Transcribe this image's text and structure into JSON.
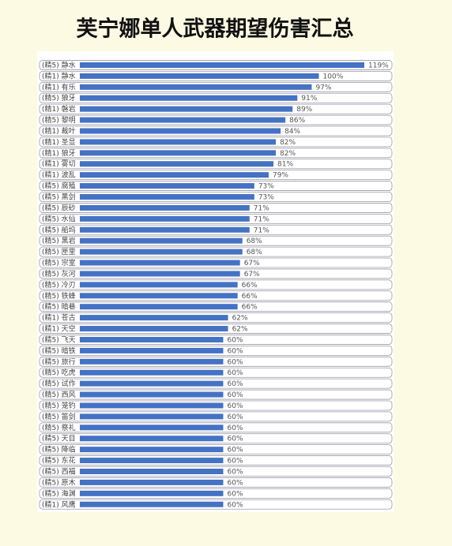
{
  "chart_data": {
    "type": "barh",
    "title": "芙宁娜单人武器期望伤害汇总",
    "color": "#4472c4",
    "categories": [
      "(精5) 静水",
      "(精1) 静水",
      "(精1) 有乐",
      "(精5) 狼牙",
      "(精1) 磐岩",
      "(精5) 黎明",
      "(精1) 裁叶",
      "(精1) 圣显",
      "(精1) 狼牙",
      "(精1) 雾切",
      "(精1) 波乱",
      "(精5) 腐殖",
      "(精5) 黑剑",
      "(精5) 辰砂",
      "(精5) 水仙",
      "(精5) 船坞",
      "(精5) 黑岩",
      "(精5) 匣里",
      "(精5) 宗室",
      "(精5) 灰河",
      "(精5) 冷刃",
      "(精5) 铁蜂",
      "(精5) 暗巷",
      "(精1) 苍古",
      "(精1) 天空",
      "(精5) 飞天",
      "(精5) 暗铁",
      "(精5) 旅行",
      "(精5) 吃虎",
      "(精5) 试作",
      "(精5) 西风",
      "(精5) 笼钓",
      "(精5) 笛剑",
      "(精5) 祭礼",
      "(精5) 天目",
      "(精5) 降临",
      "(精5) 东花",
      "(精5) 西福",
      "(精5) 原木",
      "(精5) 海渊",
      "(精1) 风鹰"
    ],
    "values": [
      119,
      100,
      97,
      91,
      89,
      86,
      84,
      82,
      82,
      81,
      79,
      73,
      73,
      71,
      71,
      71,
      68,
      68,
      67,
      67,
      66,
      66,
      66,
      62,
      62,
      60,
      60,
      60,
      60,
      60,
      60,
      60,
      60,
      60,
      60,
      60,
      60,
      60,
      60,
      60,
      60
    ],
    "value_labels": [
      "119%",
      "100%",
      "97%",
      "91%",
      "89%",
      "86%",
      "84%",
      "82%",
      "82%",
      "81%",
      "79%",
      "73%",
      "73%",
      "71%",
      "71%",
      "71%",
      "68%",
      "68%",
      "67%",
      "67%",
      "66%",
      "66%",
      "66%",
      "62%",
      "62%",
      "60%",
      "60%",
      "60%",
      "60%",
      "60%",
      "60%",
      "60%",
      "60%",
      "60%",
      "60%",
      "60%",
      "60%",
      "60%",
      "60%",
      "60%",
      "60%"
    ]
  }
}
